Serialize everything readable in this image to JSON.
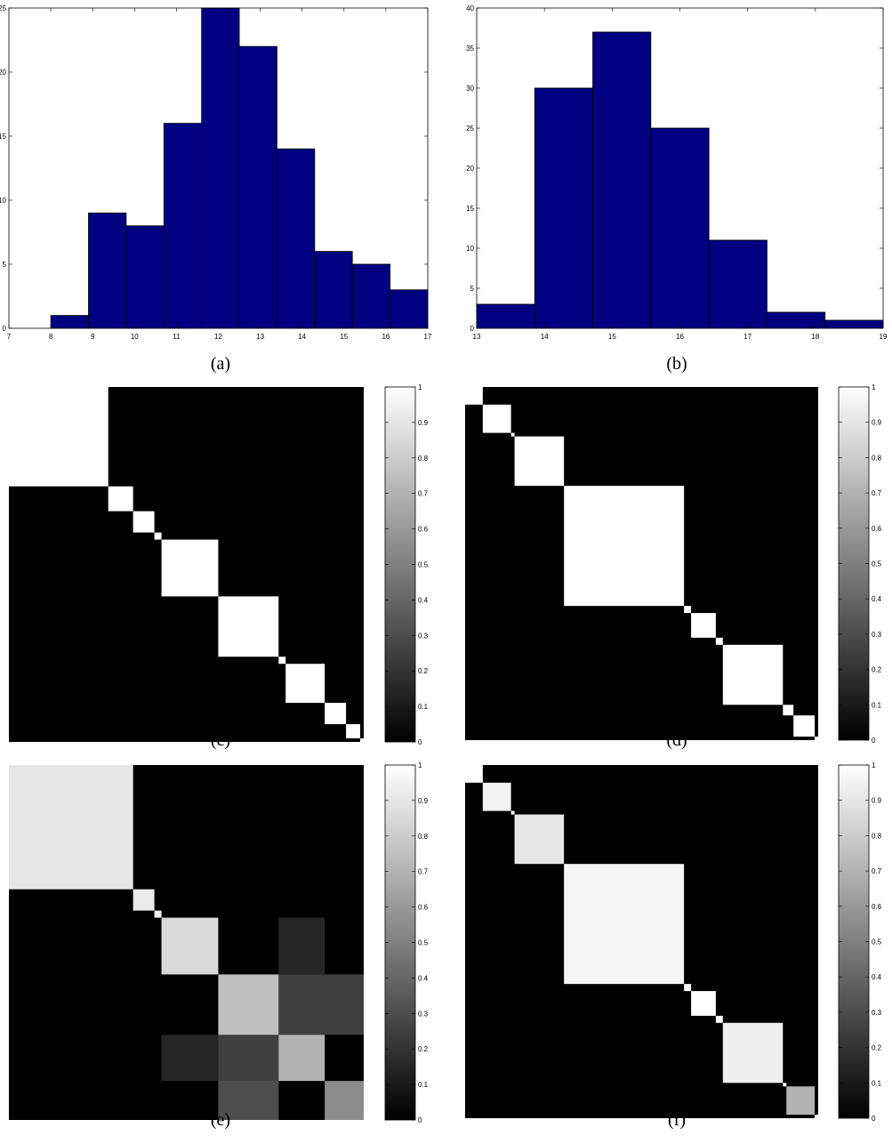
{
  "colors": {
    "bar_fill": "#000080",
    "bar_edge": "#000000",
    "background": "#ffffff"
  },
  "chart_data": [
    {
      "id": "a",
      "type": "bar",
      "caption": "(a)",
      "title": "",
      "xlabel": "",
      "ylabel": "",
      "bin_edges": [
        8,
        8.9,
        9.8,
        10.7,
        11.6,
        12.5,
        13.4,
        14.3,
        15.2,
        16.1,
        17
      ],
      "values": [
        1,
        9,
        8,
        16,
        25,
        22,
        14,
        6,
        5,
        3
      ],
      "xlim": [
        7,
        17
      ],
      "ylim": [
        0,
        25
      ],
      "xticks": [
        7,
        8,
        9,
        10,
        11,
        12,
        13,
        14,
        15,
        16,
        17
      ],
      "yticks": [
        0,
        5,
        10,
        15,
        20,
        25
      ]
    },
    {
      "id": "b",
      "type": "bar",
      "caption": "(b)",
      "title": "",
      "xlabel": "",
      "ylabel": "",
      "bin_edges": [
        13,
        13.857,
        14.714,
        15.571,
        16.429,
        17.286,
        18.143,
        19
      ],
      "values": [
        3,
        30,
        37,
        25,
        11,
        2,
        1
      ],
      "xlim": [
        13,
        19
      ],
      "ylim": [
        0,
        40
      ],
      "xticks": [
        13,
        14,
        15,
        16,
        17,
        18,
        19
      ],
      "yticks": [
        0,
        5,
        10,
        15,
        20,
        25,
        30,
        35,
        40
      ]
    },
    {
      "id": "c",
      "type": "heatmap",
      "caption": "(c)",
      "n": 100,
      "colormap": "gray",
      "clim": [
        0,
        1
      ],
      "colorbar_ticks": [
        "0",
        "0.1",
        "0.2",
        "0.3",
        "0.4",
        "0.5",
        "0.6",
        "0.7",
        "0.8",
        "0.9",
        "1"
      ],
      "blocks": [
        {
          "range": [
            0,
            28
          ],
          "value": 1
        },
        {
          "range": [
            28,
            35
          ],
          "value": 1
        },
        {
          "range": [
            35,
            41
          ],
          "value": 1
        },
        {
          "range": [
            41,
            43
          ],
          "value": 1
        },
        {
          "range": [
            43,
            59
          ],
          "value": 1
        },
        {
          "range": [
            59,
            76
          ],
          "value": 1
        },
        {
          "range": [
            76,
            78
          ],
          "value": 1
        },
        {
          "range": [
            78,
            89
          ],
          "value": 1
        },
        {
          "range": [
            89,
            95
          ],
          "value": 1
        },
        {
          "range": [
            95,
            99
          ],
          "value": 1
        },
        {
          "range": [
            99,
            100
          ],
          "value": 1
        }
      ]
    },
    {
      "id": "d",
      "type": "heatmap",
      "caption": "(d)",
      "n": 100,
      "colormap": "gray",
      "clim": [
        0,
        1
      ],
      "colorbar_ticks": [
        "0",
        "0.1",
        "0.2",
        "0.3",
        "0.4",
        "0.5",
        "0.6",
        "0.7",
        "0.8",
        "0.9",
        "1"
      ],
      "blocks": [
        {
          "range": [
            0,
            5
          ],
          "value": 1
        },
        {
          "range": [
            5,
            13
          ],
          "value": 1
        },
        {
          "range": [
            13,
            14
          ],
          "value": 1
        },
        {
          "range": [
            14,
            28
          ],
          "value": 1
        },
        {
          "range": [
            28,
            62
          ],
          "value": 1
        },
        {
          "range": [
            62,
            64
          ],
          "value": 1
        },
        {
          "range": [
            64,
            71
          ],
          "value": 1
        },
        {
          "range": [
            71,
            73
          ],
          "value": 1
        },
        {
          "range": [
            73,
            90
          ],
          "value": 1
        },
        {
          "range": [
            90,
            93
          ],
          "value": 1
        },
        {
          "range": [
            93,
            99
          ],
          "value": 1
        },
        {
          "range": [
            99,
            100
          ],
          "value": 1
        }
      ]
    },
    {
      "id": "e",
      "type": "heatmap",
      "caption": "(e)",
      "n": 100,
      "colormap": "gray",
      "clim": [
        0,
        1
      ],
      "colorbar_ticks": [
        "0",
        "0.1",
        "0.2",
        "0.3",
        "0.4",
        "0.5",
        "0.6",
        "0.7",
        "0.8",
        "0.9",
        "1"
      ],
      "blocks": [
        {
          "range": [
            0,
            35
          ],
          "value": 0.9
        },
        {
          "range": [
            35,
            41
          ],
          "value": 0.92
        },
        {
          "range": [
            41,
            43
          ],
          "value": 0.95
        },
        {
          "range": [
            43,
            59
          ],
          "value": 0.85
        },
        {
          "range": [
            59,
            76
          ],
          "value": 0.75
        },
        {
          "range": [
            76,
            89
          ],
          "value": 0.7
        },
        {
          "range": [
            89,
            100
          ],
          "value": 0.55
        }
      ],
      "off_diagonal": [
        {
          "rows": [
            59,
            76
          ],
          "cols": [
            76,
            100
          ],
          "value": 0.25
        },
        {
          "rows": [
            76,
            100
          ],
          "cols": [
            59,
            76
          ],
          "value": 0.25
        },
        {
          "rows": [
            43,
            59
          ],
          "cols": [
            76,
            89
          ],
          "value": 0.15
        },
        {
          "rows": [
            76,
            89
          ],
          "cols": [
            43,
            59
          ],
          "value": 0.15
        },
        {
          "rows": [
            89,
            100
          ],
          "cols": [
            59,
            76
          ],
          "value": 0.3
        }
      ]
    },
    {
      "id": "f",
      "type": "heatmap",
      "caption": "(f)",
      "n": 100,
      "colormap": "gray",
      "clim": [
        0,
        1
      ],
      "colorbar_ticks": [
        "0",
        "0.1",
        "0.2",
        "0.3",
        "0.4",
        "0.5",
        "0.6",
        "0.7",
        "0.8",
        "0.9",
        "1"
      ],
      "blocks": [
        {
          "range": [
            0,
            5
          ],
          "value": 1
        },
        {
          "range": [
            5,
            13
          ],
          "value": 0.95
        },
        {
          "range": [
            13,
            14
          ],
          "value": 1
        },
        {
          "range": [
            14,
            28
          ],
          "value": 0.9
        },
        {
          "range": [
            28,
            62
          ],
          "value": 0.96
        },
        {
          "range": [
            62,
            64
          ],
          "value": 1
        },
        {
          "range": [
            64,
            71
          ],
          "value": 1
        },
        {
          "range": [
            71,
            73
          ],
          "value": 1
        },
        {
          "range": [
            73,
            90
          ],
          "value": 0.94
        },
        {
          "range": [
            90,
            91
          ],
          "value": 1
        },
        {
          "range": [
            91,
            99
          ],
          "value": 0.7
        },
        {
          "range": [
            99,
            100
          ],
          "value": 1
        }
      ]
    }
  ]
}
